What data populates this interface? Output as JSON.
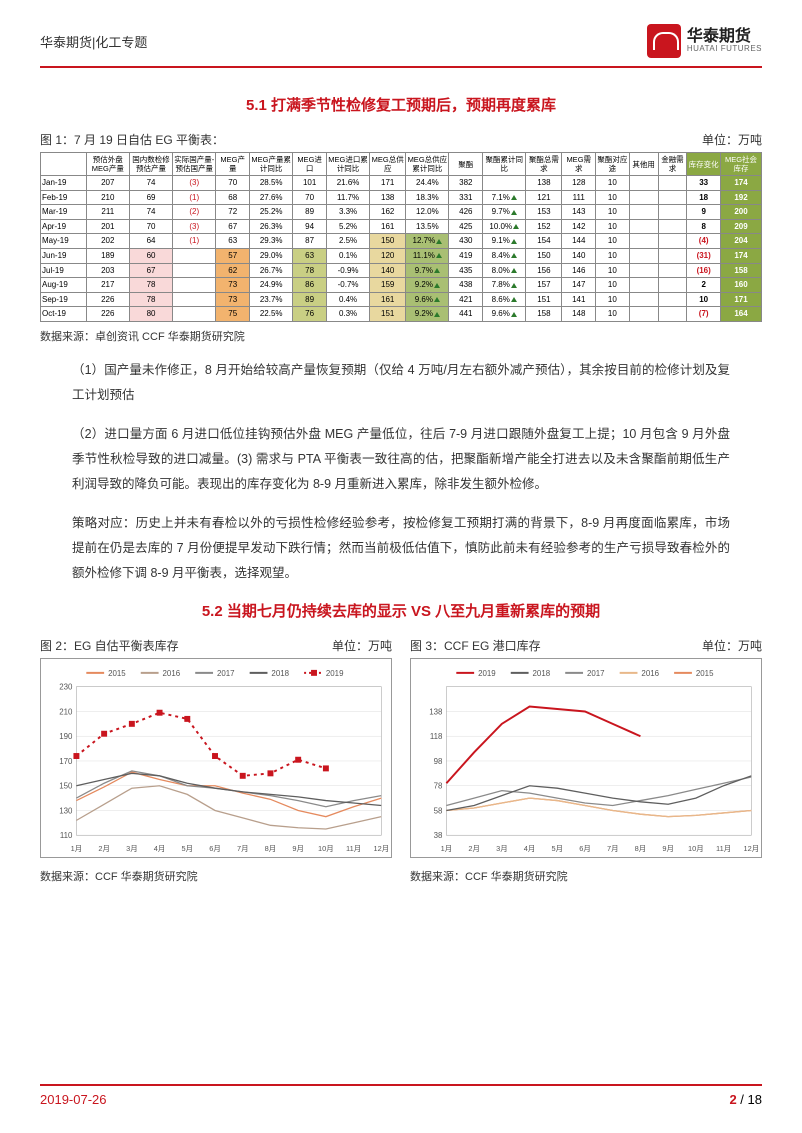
{
  "header": {
    "left": "华泰期货|化工专题",
    "brand_cn": "华泰期货",
    "brand_en": "HUATAI FUTURES"
  },
  "section51": "5.1 打满季节性检修复工预期后，预期再度累库",
  "fig1": {
    "title": "图 1：7 月 19 日自估 EG 平衡表：",
    "unit": "单位：万吨",
    "source": "数据来源：卓创资讯 CCF 华泰期货研究院"
  },
  "cols": [
    "",
    "预估外盘MEG产量",
    "国内数检修预估产量",
    "实际国产量-预估国产量",
    "MEG产量",
    "MEG产量累计同比",
    "MEG进口",
    "MEG进口累计同比",
    "MEG总供应",
    "MEG总供应累计同比",
    "聚酯",
    "聚酯累计同比",
    "聚酯总需求",
    "MEG需求",
    "聚酯对应途",
    "其他用",
    "金融需求",
    "库存变化",
    "MEG社会库存"
  ],
  "rows": [
    [
      "Jan-19",
      "207",
      "74",
      "(3)",
      "70",
      "28.5%",
      "101",
      "21.6%",
      "171",
      "24.4%",
      "382",
      "",
      "138",
      "128",
      "10",
      "",
      "",
      "33",
      "174"
    ],
    [
      "Feb-19",
      "210",
      "69",
      "(1)",
      "68",
      "27.6%",
      "70",
      "11.7%",
      "138",
      "18.3%",
      "331",
      "7.1%",
      "121",
      "111",
      "10",
      "",
      "",
      "18",
      "192"
    ],
    [
      "Mar-19",
      "211",
      "74",
      "(2)",
      "72",
      "25.2%",
      "89",
      "3.3%",
      "162",
      "12.0%",
      "426",
      "9.7%",
      "153",
      "143",
      "10",
      "",
      "",
      "9",
      "200"
    ],
    [
      "Apr-19",
      "201",
      "70",
      "(3)",
      "67",
      "26.3%",
      "94",
      "5.2%",
      "161",
      "13.5%",
      "425",
      "10.0%",
      "152",
      "142",
      "10",
      "",
      "",
      "8",
      "209"
    ],
    [
      "May-19",
      "202",
      "64",
      "(1)",
      "63",
      "29.3%",
      "87",
      "2.5%",
      "150",
      "12.7%",
      "430",
      "9.1%",
      "154",
      "144",
      "10",
      "",
      "",
      "(4)",
      "204"
    ],
    [
      "Jun-19",
      "189",
      "60",
      "",
      "57",
      "29.0%",
      "63",
      "0.1%",
      "120",
      "11.1%",
      "419",
      "8.4%",
      "150",
      "140",
      "10",
      "",
      "",
      "(31)",
      "174"
    ],
    [
      "Jul-19",
      "203",
      "67",
      "",
      "62",
      "26.7%",
      "78",
      "-0.9%",
      "140",
      "9.7%",
      "435",
      "8.0%",
      "156",
      "146",
      "10",
      "",
      "",
      "(16)",
      "158"
    ],
    [
      "Aug-19",
      "217",
      "78",
      "",
      "73",
      "24.9%",
      "86",
      "-0.7%",
      "159",
      "9.2%",
      "438",
      "7.8%",
      "157",
      "147",
      "10",
      "",
      "",
      "2",
      "160"
    ],
    [
      "Sep-19",
      "226",
      "78",
      "",
      "73",
      "23.7%",
      "89",
      "0.4%",
      "161",
      "9.6%",
      "421",
      "8.6%",
      "151",
      "141",
      "10",
      "",
      "",
      "10",
      "171"
    ],
    [
      "Oct-19",
      "226",
      "80",
      "",
      "75",
      "22.5%",
      "76",
      "0.3%",
      "151",
      "9.2%",
      "441",
      "9.6%",
      "158",
      "148",
      "10",
      "",
      "",
      "(7)",
      "164"
    ]
  ],
  "para1": "（1）国产量未作修正，8 月开始给较高产量恢复预期（仅给 4 万吨/月左右额外减产预估），其余按目前的检修计划及复工计划预估",
  "para2": "（2）进口量方面 6 月进口低位挂钩预估外盘 MEG 产量低位，往后 7-9 月进口跟随外盘复工上提；10 月包含 9 月外盘季节性秋检导致的进口减量。(3) 需求与 PTA 平衡表一致往高的估，把聚酯新增产能全打进去以及未含聚酯前期低生产利润导致的降负可能。表现出的库存变化为 8-9 月重新进入累库，除非发生额外检修。",
  "para3": "策略对应：历史上并未有春检以外的亏损性检修经验参考，按检修复工预期打满的背景下，8-9 月再度面临累库，市场提前在仍是去库的 7 月份便提早发动下跌行情；然而当前极低估值下，慎防此前未有经验参考的生产亏损导致春检外的额外检修下调 8-9 月平衡表，选择观望。",
  "section52": "5.2 当期七月仍持续去库的显示 VS 八至九月重新累库的预期",
  "fig2": {
    "title": "图 2：EG 自估平衡表库存",
    "unit": "单位：万吨",
    "source": "数据来源：CCF 华泰期货研究院",
    "ylim": [
      110,
      230
    ],
    "yticks": [
      110,
      130,
      150,
      170,
      190,
      210,
      230
    ],
    "xticks": [
      "1月",
      "2月",
      "3月",
      "4月",
      "5月",
      "6月",
      "7月",
      "8月",
      "9月",
      "10月",
      "11月",
      "12月"
    ],
    "series": {
      "2015": {
        "color": "#e58a5e",
        "vals": [
          138,
          149,
          161,
          155,
          150,
          150,
          144,
          139,
          130,
          125,
          133,
          140
        ]
      },
      "2016": {
        "color": "#b89f8c",
        "vals": [
          122,
          135,
          148,
          150,
          143,
          130,
          124,
          118,
          116,
          115,
          120,
          125
        ]
      },
      "2017": {
        "color": "#8a8a8a",
        "vals": [
          140,
          152,
          162,
          158,
          150,
          148,
          145,
          142,
          138,
          133,
          138,
          142
        ]
      },
      "2018": {
        "color": "#5e5e5e",
        "vals": [
          150,
          155,
          160,
          158,
          152,
          148,
          145,
          143,
          141,
          138,
          136,
          134
        ]
      },
      "2019": {
        "color": "#c9151e",
        "vals": [
          174,
          192,
          200,
          209,
          204,
          174,
          158,
          160,
          171,
          164,
          null,
          null
        ],
        "dash": true,
        "markers": true
      }
    }
  },
  "fig3": {
    "title": "图 3：CCF EG 港口库存",
    "unit": "单位：万吨",
    "source": "数据来源：CCF 华泰期货研究院",
    "ylim": [
      38,
      158
    ],
    "yticks": [
      38,
      58,
      78,
      98,
      118,
      138
    ],
    "xticks": [
      "1月",
      "2月",
      "3月",
      "4月",
      "5月",
      "6月",
      "7月",
      "8月",
      "9月",
      "10月",
      "11月",
      "12月"
    ],
    "series": {
      "2019": {
        "color": "#c9151e",
        "vals": [
          80,
          105,
          128,
          142,
          140,
          138,
          128,
          118,
          null,
          null,
          null,
          null
        ]
      },
      "2018": {
        "color": "#5e5e5e",
        "vals": [
          58,
          62,
          70,
          78,
          76,
          72,
          68,
          65,
          63,
          68,
          78,
          86
        ]
      },
      "2017": {
        "color": "#8a8a8a",
        "vals": [
          62,
          68,
          74,
          72,
          68,
          64,
          62,
          66,
          70,
          75,
          80,
          85
        ]
      },
      "2016": {
        "color": "#e8b88a",
        "vals": [
          58,
          60,
          64,
          68,
          66,
          62,
          58,
          55,
          53,
          54,
          56,
          58
        ]
      },
      "2015": {
        "color": "#e58a5e",
        "vals": [
          58,
          60,
          64,
          68,
          66,
          62,
          58,
          55,
          53,
          54,
          56,
          58
        ]
      }
    }
  },
  "footer": {
    "date": "2019-07-26",
    "page": "2",
    "total": "18"
  }
}
